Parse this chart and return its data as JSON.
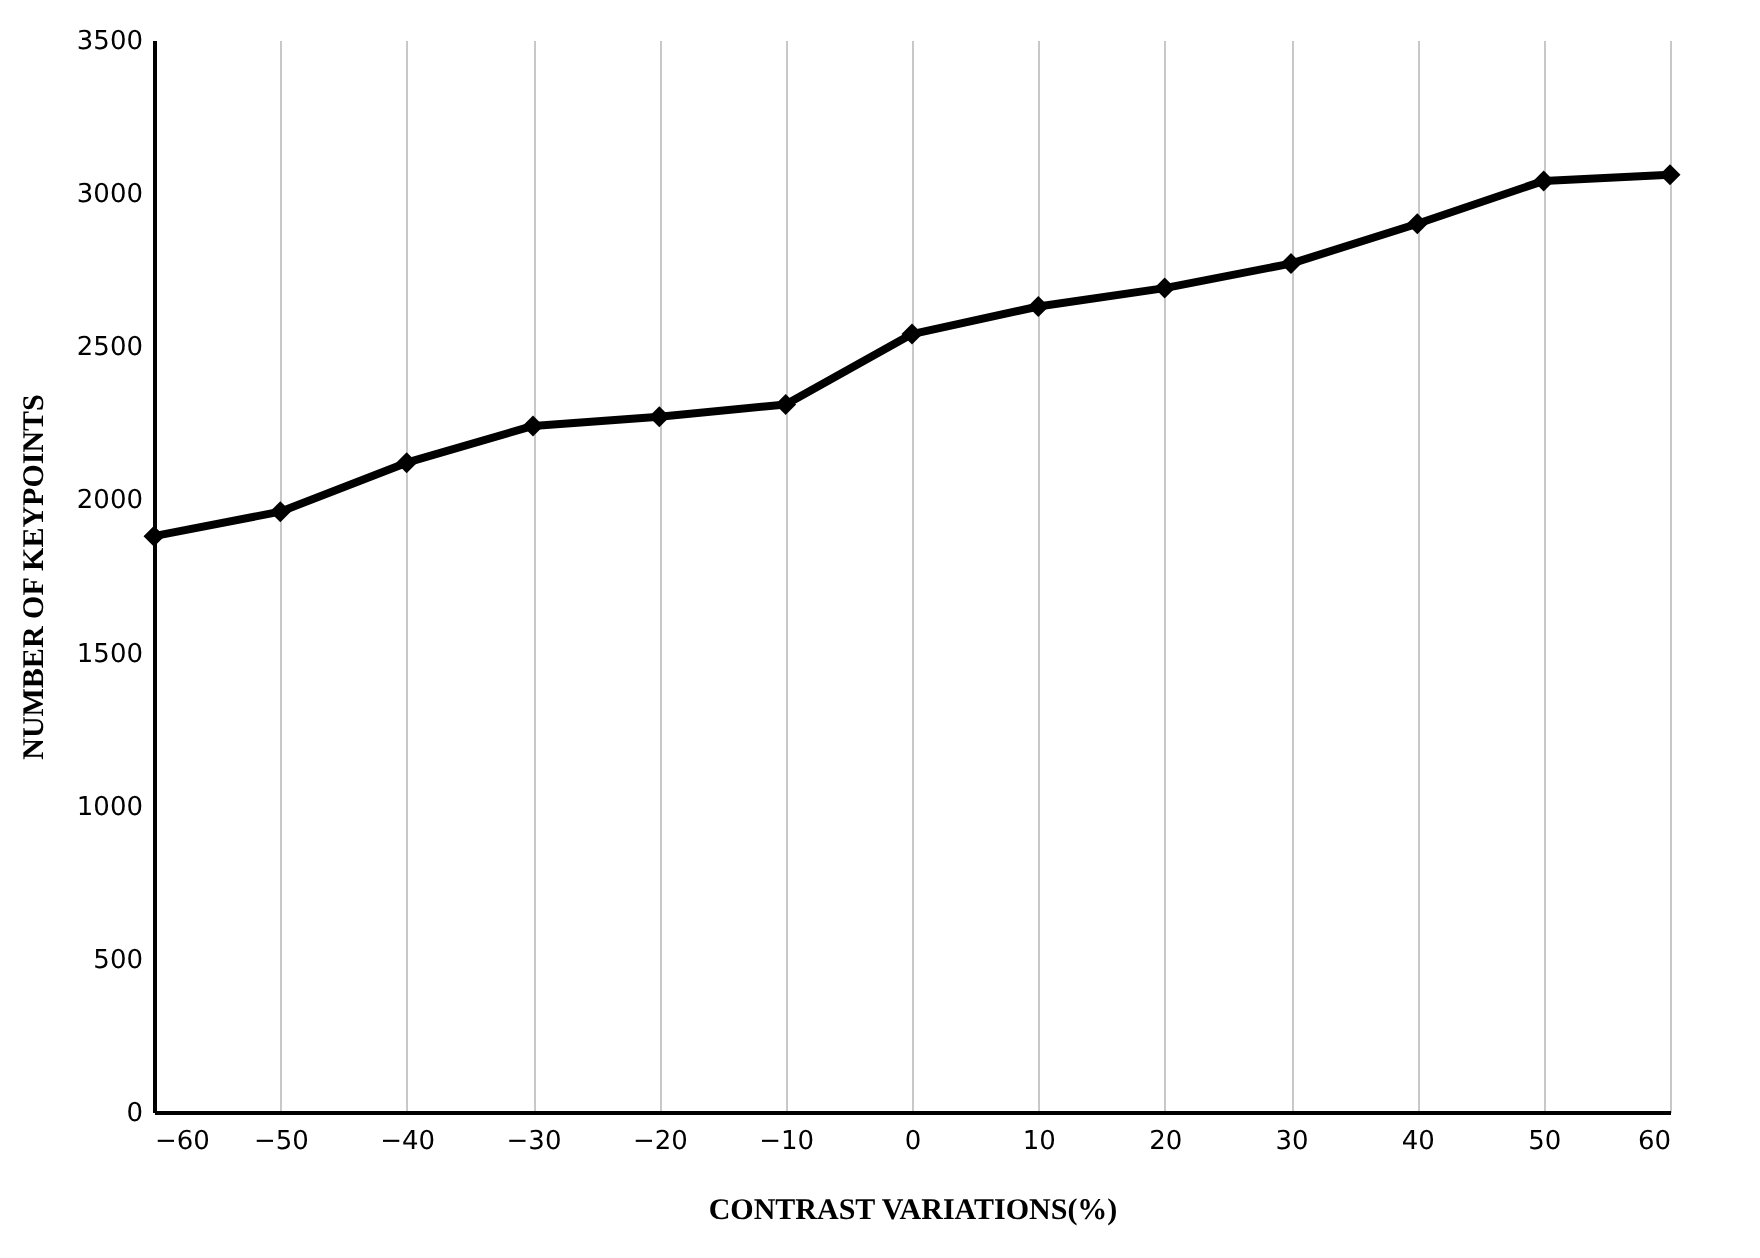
{
  "chart_data": {
    "type": "line",
    "xlabel": "CONTRAST VARIATIONS(%)",
    "ylabel": "NUMBER  OF KEYPOINTS",
    "x": [
      -60,
      -50,
      -40,
      -30,
      -20,
      -10,
      0,
      10,
      20,
      30,
      40,
      50,
      60
    ],
    "series": [
      {
        "color": "#000000",
        "values": [
          1880,
          1960,
          2120,
          2240,
          2270,
          2310,
          2540,
          2630,
          2690,
          2770,
          2900,
          3040,
          3060
        ]
      }
    ],
    "xlim": [
      -60,
      60
    ],
    "xticks": [
      -60,
      -50,
      -40,
      -30,
      -20,
      -10,
      0,
      10,
      20,
      30,
      40,
      50,
      60
    ],
    "ylim": [
      0,
      3500
    ],
    "yticks": [
      0,
      500,
      1000,
      1500,
      2000,
      2500,
      3000,
      3500
    ],
    "grid": "x",
    "marker": "diamond",
    "line_style": "solid"
  }
}
